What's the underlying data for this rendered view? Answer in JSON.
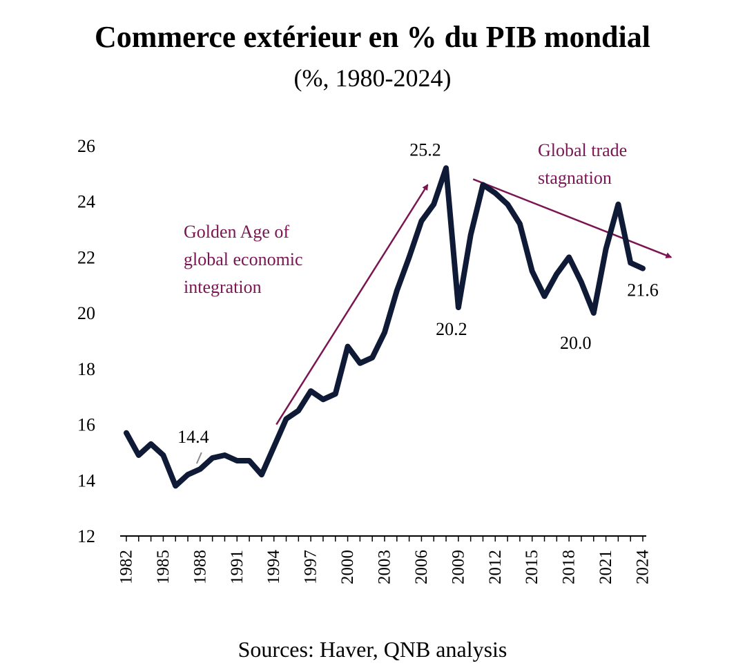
{
  "chart_data": {
    "type": "line",
    "title": "Commerce extérieur en % du PIB mondial",
    "subtitle": "(%, 1980-2024)",
    "source": "Sources: Haver, QNB analysis",
    "ylim": [
      12,
      26
    ],
    "yticks": [
      12,
      14,
      16,
      18,
      20,
      22,
      24,
      26
    ],
    "xlim": [
      1982,
      2024
    ],
    "xticks": [
      1982,
      1985,
      1988,
      1991,
      1994,
      1997,
      2000,
      2003,
      2006,
      2009,
      2012,
      2015,
      2018,
      2021,
      2024
    ],
    "grid": false,
    "line_color": "#0e1a36",
    "annotation_color": "#7a1552",
    "series": [
      {
        "x": [
          1982,
          1983,
          1984,
          1985,
          1986,
          1987,
          1988,
          1989,
          1990,
          1991,
          1992,
          1993,
          1994,
          1995,
          1996,
          1997,
          1998,
          1999,
          2000,
          2001,
          2002,
          2003,
          2004,
          2005,
          2006,
          2007,
          2008,
          2009,
          2010,
          2011,
          2012,
          2013,
          2014,
          2015,
          2016,
          2017,
          2018,
          2019,
          2020,
          2021,
          2022,
          2023,
          2024
        ],
        "values": [
          15.7,
          14.9,
          15.3,
          14.9,
          13.8,
          14.2,
          14.4,
          14.8,
          14.9,
          14.7,
          14.7,
          14.2,
          15.2,
          16.2,
          16.5,
          17.2,
          16.9,
          17.1,
          18.8,
          18.2,
          18.4,
          19.3,
          20.8,
          22.0,
          23.3,
          23.9,
          25.2,
          20.2,
          22.8,
          24.6,
          24.3,
          23.9,
          23.2,
          21.5,
          20.6,
          21.4,
          22.0,
          21.1,
          20.0,
          22.3,
          23.9,
          21.8,
          21.6
        ]
      }
    ],
    "data_labels": [
      {
        "text": "14.4",
        "x": 1988,
        "y": 14.4
      },
      {
        "text": "25.2",
        "x": 2008,
        "y": 25.2
      },
      {
        "text": "20.2",
        "x": 2009,
        "y": 20.2
      },
      {
        "text": "20.0",
        "x": 2020,
        "y": 20.0
      },
      {
        "text": "21.6",
        "x": 2024,
        "y": 21.6
      }
    ],
    "annotations": [
      {
        "lines": [
          "Golden Age of",
          "global economic",
          "integration"
        ],
        "arrow_from": [
          1994.2,
          16.0
        ],
        "arrow_to": [
          2006.5,
          24.6
        ]
      },
      {
        "lines": [
          "Global trade",
          "stagnation"
        ],
        "arrow_from": [
          2010.2,
          24.8
        ],
        "arrow_to": [
          2026.3,
          22.0
        ]
      }
    ]
  }
}
